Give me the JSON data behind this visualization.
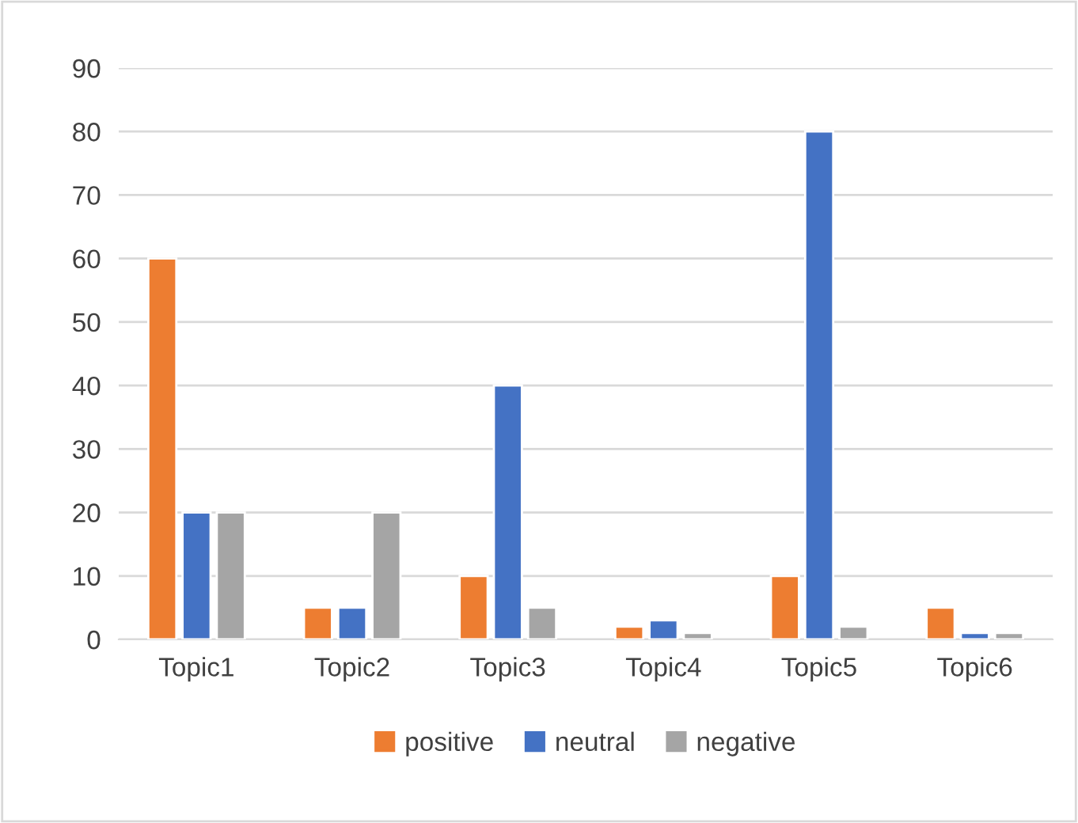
{
  "chart_data": {
    "type": "bar",
    "categories": [
      "Topic1",
      "Topic2",
      "Topic3",
      "Topic4",
      "Topic5",
      "Topic6"
    ],
    "series": [
      {
        "name": "positive",
        "color": "#ed7d31",
        "values": [
          60,
          5,
          10,
          2,
          10,
          5
        ]
      },
      {
        "name": "neutral",
        "color": "#4472c4",
        "values": [
          20,
          5,
          40,
          3,
          80,
          1
        ]
      },
      {
        "name": "negative",
        "color": "#a5a5a5",
        "values": [
          20,
          20,
          5,
          1,
          2,
          1
        ]
      }
    ],
    "ylim": [
      0,
      90
    ],
    "yticks": [
      0,
      10,
      20,
      30,
      40,
      50,
      60,
      70,
      80,
      90
    ],
    "grid": "y",
    "legend": "bottom"
  }
}
